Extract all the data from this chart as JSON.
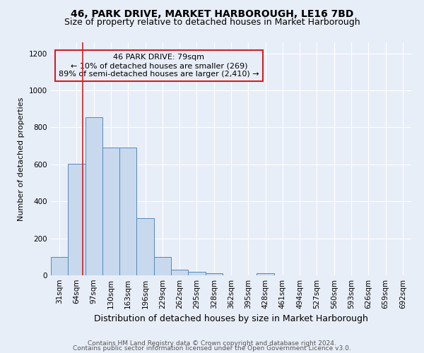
{
  "title": "46, PARK DRIVE, MARKET HARBOROUGH, LE16 7BD",
  "subtitle": "Size of property relative to detached houses in Market Harborough",
  "xlabel": "Distribution of detached houses by size in Market Harborough",
  "ylabel": "Number of detached properties",
  "footer_line1": "Contains HM Land Registry data © Crown copyright and database right 2024.",
  "footer_line2": "Contains public sector information licensed under the Open Government Licence v3.0.",
  "categories": [
    "31sqm",
    "64sqm",
    "97sqm",
    "130sqm",
    "163sqm",
    "196sqm",
    "229sqm",
    "262sqm",
    "295sqm",
    "328sqm",
    "362sqm",
    "395sqm",
    "428sqm",
    "461sqm",
    "494sqm",
    "527sqm",
    "560sqm",
    "593sqm",
    "626sqm",
    "659sqm",
    "692sqm"
  ],
  "values": [
    100,
    605,
    855,
    690,
    690,
    310,
    100,
    32,
    20,
    12,
    0,
    0,
    12,
    0,
    0,
    0,
    0,
    0,
    0,
    0,
    0
  ],
  "bar_color": "#c8d9ee",
  "bar_edge_color": "#5588bb",
  "vline_x": 1.35,
  "vline_color": "#cc2222",
  "annotation_text": "46 PARK DRIVE: 79sqm\n← 10% of detached houses are smaller (269)\n89% of semi-detached houses are larger (2,410) →",
  "annotation_box_edge": "#cc2222",
  "ylim": [
    0,
    1260
  ],
  "yticks": [
    0,
    200,
    400,
    600,
    800,
    1000,
    1200
  ],
  "background_color": "#e8eef8",
  "grid_color": "#ffffff",
  "title_fontsize": 10,
  "subtitle_fontsize": 9,
  "xlabel_fontsize": 9,
  "ylabel_fontsize": 8,
  "tick_fontsize": 7.5,
  "annotation_fontsize": 8,
  "footer_fontsize": 6.5
}
